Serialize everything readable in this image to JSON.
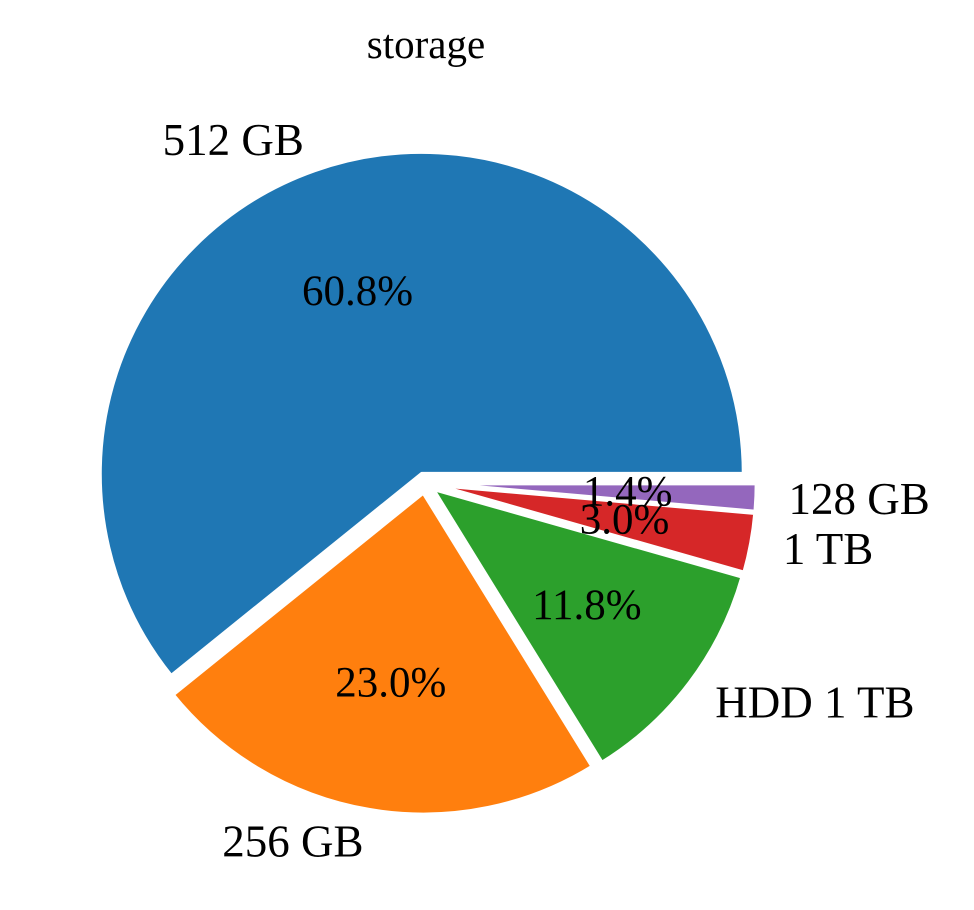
{
  "chart_data": {
    "type": "pie",
    "title": "storage",
    "slices": [
      {
        "label": "512 GB",
        "percent": 60.8,
        "pct_label": "60.8%",
        "color": "#1f77b4"
      },
      {
        "label": "256 GB",
        "percent": 23.0,
        "pct_label": "23.0%",
        "color": "#ff7f0e"
      },
      {
        "label": "HDD 1 TB",
        "percent": 11.8,
        "pct_label": "11.8%",
        "color": "#2ca02c"
      },
      {
        "label": "1 TB",
        "percent": 3.0,
        "pct_label": "3.0%",
        "color": "#d62728"
      },
      {
        "label": "128 GB",
        "percent": 1.4,
        "pct_label": "1.4%",
        "color": "#9467bd"
      }
    ],
    "start_angle_deg": 0,
    "direction": "counterclockwise",
    "exploded": true
  }
}
